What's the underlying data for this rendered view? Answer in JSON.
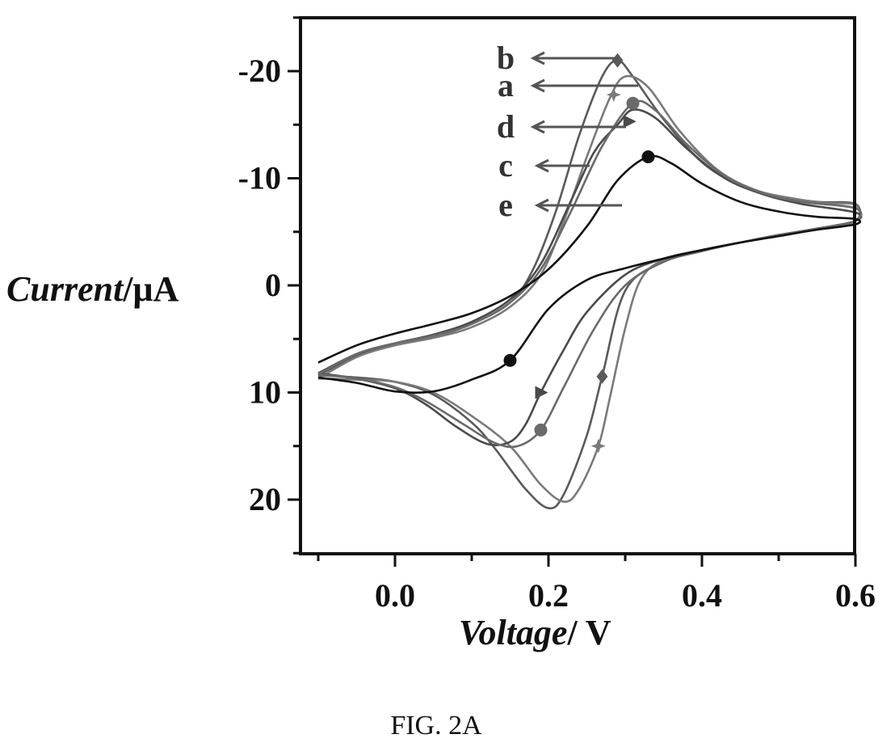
{
  "chart_data": {
    "type": "line",
    "xlabel_italic": "Voltage",
    "xlabel_unit": "/ V",
    "ylabel_italic": "Current",
    "ylabel_unit": "/μA",
    "xlim": [
      -0.12,
      0.6
    ],
    "ylim": [
      -25,
      25
    ],
    "y_axis_inverted": true,
    "x_ticks": [
      0.0,
      0.2,
      0.4,
      0.6
    ],
    "x_tick_labels": [
      "0.0",
      "0.2",
      "0.4",
      "0.6"
    ],
    "y_ticks": [
      -20,
      -10,
      0,
      10,
      20
    ],
    "y_tick_labels": [
      "-20",
      "-10",
      "0",
      "10",
      "20"
    ],
    "grid": false,
    "series": [
      {
        "name": "b",
        "color": "#5a5a5a",
        "marker": "diamond",
        "marker_points": [
          [
            0.29,
            -21
          ],
          [
            0.27,
            8.5
          ]
        ],
        "points": [
          [
            -0.1,
            8.4
          ],
          [
            -0.05,
            6.6
          ],
          [
            0.0,
            5.5
          ],
          [
            0.05,
            4.8
          ],
          [
            0.1,
            3.6
          ],
          [
            0.15,
            1.6
          ],
          [
            0.18,
            -1.5
          ],
          [
            0.21,
            -7
          ],
          [
            0.24,
            -14
          ],
          [
            0.27,
            -19.5
          ],
          [
            0.29,
            -21
          ],
          [
            0.31,
            -19.5
          ],
          [
            0.35,
            -15.5
          ],
          [
            0.4,
            -11.5
          ],
          [
            0.45,
            -9.3
          ],
          [
            0.5,
            -8.3
          ],
          [
            0.55,
            -7.8
          ],
          [
            0.6,
            -7.6
          ],
          [
            0.6,
            -6
          ],
          [
            0.55,
            -5.3
          ],
          [
            0.5,
            -4.7
          ],
          [
            0.45,
            -4
          ],
          [
            0.4,
            -3.2
          ],
          [
            0.35,
            -2.2
          ],
          [
            0.3,
            0.5
          ],
          [
            0.27,
            8.5
          ],
          [
            0.25,
            14
          ],
          [
            0.22,
            19.5
          ],
          [
            0.2,
            20.8
          ],
          [
            0.17,
            19
          ],
          [
            0.13,
            15.2
          ],
          [
            0.1,
            12.8
          ],
          [
            0.05,
            10.2
          ],
          [
            0.0,
            9
          ],
          [
            -0.05,
            8.6
          ],
          [
            -0.1,
            8.4
          ]
        ]
      },
      {
        "name": "a",
        "color": "#7a7a7a",
        "marker": "star",
        "marker_points": [
          [
            0.285,
            -17.8
          ],
          [
            0.265,
            15
          ]
        ],
        "points": [
          [
            -0.1,
            8.7
          ],
          [
            -0.05,
            6.7
          ],
          [
            0.0,
            5.6
          ],
          [
            0.05,
            4.9
          ],
          [
            0.1,
            3.9
          ],
          [
            0.15,
            2
          ],
          [
            0.19,
            -1
          ],
          [
            0.22,
            -6
          ],
          [
            0.25,
            -12
          ],
          [
            0.28,
            -17.5
          ],
          [
            0.3,
            -19.5
          ],
          [
            0.33,
            -18.5
          ],
          [
            0.37,
            -14.5
          ],
          [
            0.42,
            -10.8
          ],
          [
            0.47,
            -8.9
          ],
          [
            0.52,
            -8.1
          ],
          [
            0.56,
            -7.7
          ],
          [
            0.6,
            -7.5
          ],
          [
            0.6,
            -6
          ],
          [
            0.55,
            -5.3
          ],
          [
            0.5,
            -4.7
          ],
          [
            0.45,
            -4
          ],
          [
            0.4,
            -3.3
          ],
          [
            0.35,
            -2.4
          ],
          [
            0.32,
            -0.5
          ],
          [
            0.3,
            4
          ],
          [
            0.28,
            10.5
          ],
          [
            0.265,
            15
          ],
          [
            0.24,
            19
          ],
          [
            0.22,
            20.2
          ],
          [
            0.19,
            18.6
          ],
          [
            0.15,
            15
          ],
          [
            0.1,
            12.2
          ],
          [
            0.05,
            10
          ],
          [
            0.0,
            9
          ],
          [
            -0.05,
            8.8
          ],
          [
            -0.1,
            8.7
          ]
        ]
      },
      {
        "name": "d",
        "color": "#4a4a4a",
        "marker": "triangle",
        "marker_points": [
          [
            0.305,
            -15.3
          ],
          [
            0.19,
            10
          ]
        ],
        "points": [
          [
            -0.1,
            8.2
          ],
          [
            -0.05,
            6.4
          ],
          [
            0.0,
            5.4
          ],
          [
            0.05,
            4.6
          ],
          [
            0.1,
            3.4
          ],
          [
            0.15,
            1.3
          ],
          [
            0.19,
            -2
          ],
          [
            0.23,
            -8
          ],
          [
            0.26,
            -12.5
          ],
          [
            0.29,
            -15
          ],
          [
            0.31,
            -16.4
          ],
          [
            0.34,
            -15.6
          ],
          [
            0.38,
            -12.8
          ],
          [
            0.43,
            -10
          ],
          [
            0.48,
            -8.5
          ],
          [
            0.53,
            -7.6
          ],
          [
            0.6,
            -6.8
          ],
          [
            0.6,
            -6
          ],
          [
            0.55,
            -5.3
          ],
          [
            0.5,
            -4.7
          ],
          [
            0.45,
            -4
          ],
          [
            0.4,
            -3.3
          ],
          [
            0.35,
            -2.5
          ],
          [
            0.3,
            -1
          ],
          [
            0.25,
            2.5
          ],
          [
            0.22,
            6
          ],
          [
            0.19,
            10
          ],
          [
            0.17,
            13
          ],
          [
            0.15,
            14.6
          ],
          [
            0.12,
            14.8
          ],
          [
            0.08,
            13.2
          ],
          [
            0.04,
            11.1
          ],
          [
            0.0,
            9.6
          ],
          [
            -0.05,
            8.7
          ],
          [
            -0.1,
            8.2
          ]
        ]
      },
      {
        "name": "c",
        "color": "#6a6a6a",
        "marker": "dot",
        "marker_points": [
          [
            0.31,
            -17
          ],
          [
            0.19,
            13.5
          ]
        ],
        "points": [
          [
            -0.1,
            8.3
          ],
          [
            -0.05,
            6.4
          ],
          [
            0.0,
            5.4
          ],
          [
            0.05,
            4.7
          ],
          [
            0.1,
            3.6
          ],
          [
            0.15,
            1.6
          ],
          [
            0.19,
            -1.5
          ],
          [
            0.23,
            -7
          ],
          [
            0.27,
            -13
          ],
          [
            0.31,
            -17
          ],
          [
            0.34,
            -16.3
          ],
          [
            0.38,
            -13.2
          ],
          [
            0.43,
            -10.2
          ],
          [
            0.48,
            -8.6
          ],
          [
            0.53,
            -7.8
          ],
          [
            0.6,
            -7.2
          ],
          [
            0.6,
            -6
          ],
          [
            0.55,
            -5.3
          ],
          [
            0.5,
            -4.7
          ],
          [
            0.45,
            -4
          ],
          [
            0.4,
            -3.2
          ],
          [
            0.35,
            -2.2
          ],
          [
            0.3,
            0
          ],
          [
            0.26,
            4
          ],
          [
            0.22,
            9.5
          ],
          [
            0.19,
            13.5
          ],
          [
            0.16,
            15
          ],
          [
            0.13,
            14.7
          ],
          [
            0.09,
            13
          ],
          [
            0.04,
            10.8
          ],
          [
            0.0,
            9.5
          ],
          [
            -0.05,
            8.7
          ],
          [
            -0.1,
            8.3
          ]
        ]
      },
      {
        "name": "e",
        "color": "#111111",
        "marker": "dot",
        "marker_points": [
          [
            0.33,
            -12
          ],
          [
            0.15,
            7
          ]
        ],
        "points": [
          [
            -0.1,
            7.2
          ],
          [
            -0.05,
            5.6
          ],
          [
            0.0,
            4.5
          ],
          [
            0.05,
            3.6
          ],
          [
            0.1,
            2.6
          ],
          [
            0.15,
            1
          ],
          [
            0.2,
            -1.5
          ],
          [
            0.25,
            -5.5
          ],
          [
            0.29,
            -9.8
          ],
          [
            0.33,
            -12
          ],
          [
            0.36,
            -11.4
          ],
          [
            0.4,
            -9.5
          ],
          [
            0.45,
            -7.8
          ],
          [
            0.5,
            -6.9
          ],
          [
            0.55,
            -6.4
          ],
          [
            0.6,
            -6.2
          ],
          [
            0.6,
            -5.7
          ],
          [
            0.55,
            -5.2
          ],
          [
            0.5,
            -4.6
          ],
          [
            0.45,
            -4
          ],
          [
            0.4,
            -3.3
          ],
          [
            0.35,
            -2.5
          ],
          [
            0.3,
            -1.6
          ],
          [
            0.25,
            -0.5
          ],
          [
            0.2,
            2.2
          ],
          [
            0.15,
            7
          ],
          [
            0.1,
            8.8
          ],
          [
            0.05,
            9.9
          ],
          [
            0.0,
            9.9
          ],
          [
            -0.05,
            9.1
          ],
          [
            -0.1,
            8.6
          ]
        ]
      }
    ],
    "curve_label_order": [
      "b",
      "a",
      "d",
      "c",
      "e"
    ]
  },
  "caption": "FIG. 2A"
}
